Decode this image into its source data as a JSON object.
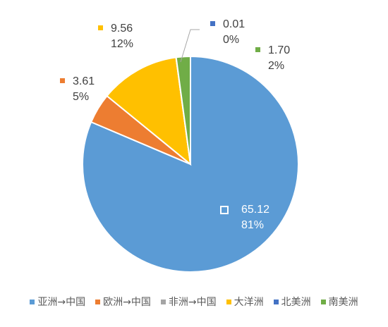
{
  "chart_data": {
    "type": "pie",
    "title": "",
    "slices": [
      {
        "name": "亚洲→中国",
        "value": 65.12,
        "percent_label": "81%",
        "value_label": "65.12",
        "color": "#5B9BD5"
      },
      {
        "name": "欧洲→中国",
        "value": 3.61,
        "percent_label": "5%",
        "value_label": "3.61",
        "color": "#ED7D31"
      },
      {
        "name": "非洲→中国",
        "value": 0.0,
        "percent_label": "",
        "value_label": "",
        "color": "#A5A5A5"
      },
      {
        "name": "大洋洲",
        "value": 9.56,
        "percent_label": "12%",
        "value_label": "9.56",
        "color": "#FFC000"
      },
      {
        "name": "北美洲",
        "value": 0.01,
        "percent_label": "0%",
        "value_label": "0.01",
        "color": "#4472C4"
      },
      {
        "name": "南美洲",
        "value": 1.7,
        "percent_label": "2%",
        "value_label": "1.70",
        "color": "#70AD47"
      }
    ],
    "legend_position": "bottom",
    "start_angle_deg": 0,
    "direction": "clockwise"
  }
}
